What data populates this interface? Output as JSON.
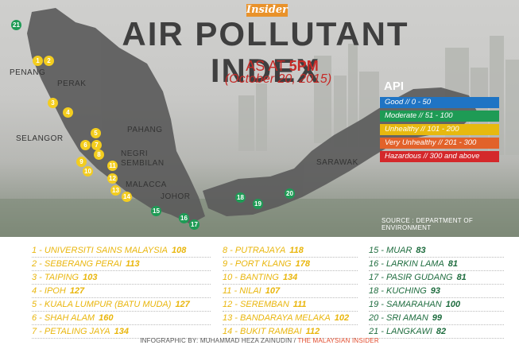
{
  "brand": "Insider",
  "title": "AIR POLLUTANT INDEX",
  "as_at_prefix": "AS AT ",
  "as_at_time": "5PM",
  "date": "(October 20, 2015)",
  "api_heading": "API",
  "legend": [
    {
      "label": "Good // 0 - 50",
      "color": "#1f74c4"
    },
    {
      "label": "Moderate // 51 - 100",
      "color": "#1e9b55"
    },
    {
      "label": "Unhealthy // 101 - 200",
      "color": "#e7b90f"
    },
    {
      "label": "Very Unhealthy // 201 - 300",
      "color": "#e2622a"
    },
    {
      "label": "Hazardous // 300 and above",
      "color": "#d4282b"
    }
  ],
  "regions": [
    "PENANG",
    "PERAK",
    "PAHANG",
    "SELANGOR",
    "NEGRI",
    "SEMBILAN",
    "MALACCA",
    "JOHOR",
    "SARAWAK"
  ],
  "source": "SOURCE : DEPARTMENT OF ENVIRONMENT",
  "stations": [
    {
      "id": "1",
      "name": "UNIVERSITI SAINS MALAYSIA",
      "value": "108",
      "level": "unhealthy"
    },
    {
      "id": "2",
      "name": "SEBERANG PERAI",
      "value": "113",
      "level": "unhealthy"
    },
    {
      "id": "3",
      "name": "TAIPING",
      "value": "103",
      "level": "unhealthy"
    },
    {
      "id": "4",
      "name": "IPOH",
      "value": "127",
      "level": "unhealthy"
    },
    {
      "id": "5",
      "name": "KUALA LUMPUR (BATU MUDA)",
      "value": "127",
      "level": "unhealthy"
    },
    {
      "id": "6",
      "name": "SHAH ALAM",
      "value": "160",
      "level": "unhealthy"
    },
    {
      "id": "7",
      "name": "PETALING JAYA",
      "value": "134",
      "level": "unhealthy"
    },
    {
      "id": "8",
      "name": "PUTRAJAYA",
      "value": "118",
      "level": "unhealthy"
    },
    {
      "id": "9",
      "name": "PORT KLANG",
      "value": "178",
      "level": "unhealthy"
    },
    {
      "id": "10",
      "name": "BANTING",
      "value": "134",
      "level": "unhealthy"
    },
    {
      "id": "11",
      "name": "NILAI",
      "value": "107",
      "level": "unhealthy"
    },
    {
      "id": "12",
      "name": "SEREMBAN",
      "value": "111",
      "level": "unhealthy"
    },
    {
      "id": "13",
      "name": "BANDARAYA MELAKA",
      "value": "102",
      "level": "unhealthy"
    },
    {
      "id": "14",
      "name": "BUKIT RAMBAI",
      "value": "112",
      "level": "unhealthy"
    },
    {
      "id": "15",
      "name": "MUAR",
      "value": "83",
      "level": "moderate"
    },
    {
      "id": "16",
      "name": "LARKIN LAMA",
      "value": "81",
      "level": "moderate"
    },
    {
      "id": "17",
      "name": "PASIR GUDANG",
      "value": "81",
      "level": "moderate"
    },
    {
      "id": "18",
      "name": "KUCHING",
      "value": "93",
      "level": "moderate"
    },
    {
      "id": "19",
      "name": "SAMARAHAN",
      "value": "100",
      "level": "moderate"
    },
    {
      "id": "20",
      "name": "SRI AMAN",
      "value": "99",
      "level": "moderate"
    },
    {
      "id": "21",
      "name": "LANGKAWI",
      "value": "82",
      "level": "moderate"
    }
  ],
  "credit_prefix": "INFOGRAPHIC BY: MUHAMMAD HEZA ZAINUDIN / ",
  "credit_outlet": "THE MALAYSIAN INSIDER"
}
